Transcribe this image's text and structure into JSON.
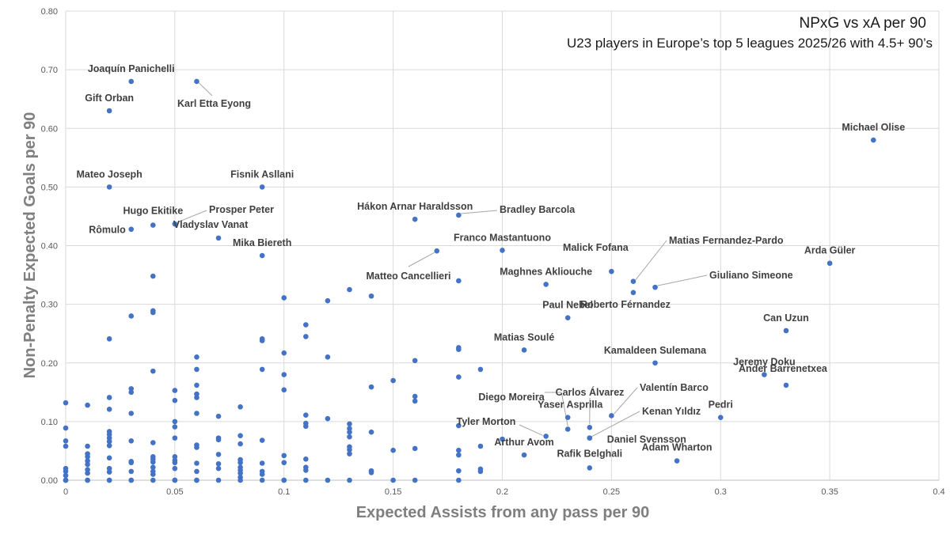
{
  "chart_data": {
    "type": "scatter",
    "title": "NPxG vs xA per 90",
    "subtitle": "U23 players in Europe’s top 5 leagues 2025/26 with 4.5+ 90’s",
    "xlabel": "Expected Assists from any pass per 90",
    "ylabel": "Non-Penalty Expected Goals per 90",
    "xlim": [
      0,
      0.4
    ],
    "ylim": [
      0,
      0.8
    ],
    "x_ticks": [
      "0",
      "0.05",
      "0.1",
      "0.15",
      "0.2",
      "0.25",
      "0.3",
      "0.35",
      "0.4"
    ],
    "y_ticks": [
      "0.00",
      "0.10",
      "0.20",
      "0.30",
      "0.40",
      "0.50",
      "0.60",
      "0.70",
      "0.80"
    ],
    "grid": true,
    "marker_color": "#4472c4",
    "labeled_points": [
      {
        "name": "Joaquín Panichelli",
        "x": 0.03,
        "y": 0.68
      },
      {
        "name": "Karl Etta Eyong",
        "x": 0.06,
        "y": 0.68
      },
      {
        "name": "Gift Orban",
        "x": 0.02,
        "y": 0.63
      },
      {
        "name": "Michael Olise",
        "x": 0.37,
        "y": 0.58
      },
      {
        "name": "Mateo Joseph",
        "x": 0.02,
        "y": 0.5
      },
      {
        "name": "Fisnik Asllani",
        "x": 0.09,
        "y": 0.5
      },
      {
        "name": "Hákon Arnar Haraldsson",
        "x": 0.16,
        "y": 0.445
      },
      {
        "name": "Bradley Barcola",
        "x": 0.18,
        "y": 0.452
      },
      {
        "name": "Prosper Peter",
        "x": 0.05,
        "y": 0.437
      },
      {
        "name": "Hugo Ekitike",
        "x": 0.04,
        "y": 0.435
      },
      {
        "name": "Rômulo",
        "x": 0.03,
        "y": 0.428
      },
      {
        "name": "Vladyslav Vanat",
        "x": 0.07,
        "y": 0.413
      },
      {
        "name": "Mika Biereth",
        "x": 0.09,
        "y": 0.383
      },
      {
        "name": "Franco Mastantuono",
        "x": 0.2,
        "y": 0.392
      },
      {
        "name": "Matteo Cancellieri",
        "x": 0.17,
        "y": 0.391
      },
      {
        "name": "Matias Fernandez-Pardo",
        "x": 0.26,
        "y": 0.339
      },
      {
        "name": "Malick Fofana",
        "x": 0.25,
        "y": 0.356
      },
      {
        "name": "Arda Güler",
        "x": 0.35,
        "y": 0.37
      },
      {
        "name": "Maghnes Akliouche",
        "x": 0.22,
        "y": 0.334
      },
      {
        "name": "Giuliano Simeone",
        "x": 0.27,
        "y": 0.329
      },
      {
        "name": "Roberto Férnandez",
        "x": 0.26,
        "y": 0.32
      },
      {
        "name": "Paul Nebel",
        "x": 0.23,
        "y": 0.277
      },
      {
        "name": "Can Uzun",
        "x": 0.33,
        "y": 0.255
      },
      {
        "name": "Matias Soulé",
        "x": 0.21,
        "y": 0.222
      },
      {
        "name": "Kamaldeen Sulemana",
        "x": 0.27,
        "y": 0.2
      },
      {
        "name": "Jeremy Doku",
        "x": 0.32,
        "y": 0.18
      },
      {
        "name": "Ander Barrenetxea",
        "x": 0.33,
        "y": 0.162
      },
      {
        "name": "Diego Moreira",
        "x": 0.23,
        "y": 0.087
      },
      {
        "name": "Carlos Álvarez",
        "x": 0.24,
        "y": 0.09
      },
      {
        "name": "Valentín Barco",
        "x": 0.25,
        "y": 0.11
      },
      {
        "name": "Yaser Asprilla",
        "x": 0.23,
        "y": 0.107
      },
      {
        "name": "Kenan Yıldız",
        "x": 0.24,
        "y": 0.072
      },
      {
        "name": "Pedri",
        "x": 0.3,
        "y": 0.107
      },
      {
        "name": "Tyler Morton",
        "x": 0.22,
        "y": 0.075
      },
      {
        "name": "Daniel Svensson",
        "x": 0.24,
        "y": 0.072
      },
      {
        "name": "Arthur Avom",
        "x": 0.21,
        "y": 0.043
      },
      {
        "name": "Adam Wharton",
        "x": 0.28,
        "y": 0.033
      },
      {
        "name": "Rafik Belghali",
        "x": 0.24,
        "y": 0.021
      }
    ],
    "unlabeled_points": [
      [
        0,
        0.132
      ],
      [
        0,
        0.089
      ],
      [
        0,
        0.067
      ],
      [
        0,
        0.058
      ],
      [
        0,
        0.02
      ],
      [
        0,
        0.015
      ],
      [
        0,
        0.008
      ],
      [
        0,
        0
      ],
      [
        0,
        0
      ],
      [
        0,
        0
      ],
      [
        0.01,
        0.128
      ],
      [
        0.01,
        0.058
      ],
      [
        0.01,
        0.045
      ],
      [
        0.01,
        0.04
      ],
      [
        0.01,
        0.033
      ],
      [
        0.01,
        0.027
      ],
      [
        0.01,
        0.018
      ],
      [
        0.01,
        0.012
      ],
      [
        0.01,
        0
      ],
      [
        0.01,
        0
      ],
      [
        0.02,
        0.241
      ],
      [
        0.02,
        0.141
      ],
      [
        0.02,
        0.121
      ],
      [
        0.02,
        0.083
      ],
      [
        0.02,
        0.078
      ],
      [
        0.02,
        0.072
      ],
      [
        0.02,
        0.066
      ],
      [
        0.02,
        0.059
      ],
      [
        0.02,
        0.038
      ],
      [
        0.02,
        0.02
      ],
      [
        0.02,
        0.014
      ],
      [
        0.02,
        0
      ],
      [
        0.02,
        0
      ],
      [
        0.03,
        0.28
      ],
      [
        0.03,
        0.156
      ],
      [
        0.03,
        0.15
      ],
      [
        0.03,
        0.114
      ],
      [
        0.03,
        0.067
      ],
      [
        0.03,
        0.032
      ],
      [
        0.03,
        0.03
      ],
      [
        0.03,
        0.015
      ],
      [
        0.03,
        0
      ],
      [
        0.03,
        0
      ],
      [
        0.04,
        0.348
      ],
      [
        0.04,
        0.289
      ],
      [
        0.04,
        0.286
      ],
      [
        0.04,
        0.186
      ],
      [
        0.04,
        0.064
      ],
      [
        0.04,
        0.04
      ],
      [
        0.04,
        0.036
      ],
      [
        0.04,
        0.031
      ],
      [
        0.04,
        0.022
      ],
      [
        0.04,
        0.015
      ],
      [
        0.04,
        0.01
      ],
      [
        0.04,
        0
      ],
      [
        0.05,
        0.153
      ],
      [
        0.05,
        0.136
      ],
      [
        0.05,
        0.1
      ],
      [
        0.05,
        0.091
      ],
      [
        0.05,
        0.072
      ],
      [
        0.05,
        0.04
      ],
      [
        0.05,
        0.034
      ],
      [
        0.05,
        0.03
      ],
      [
        0.05,
        0.02
      ],
      [
        0.05,
        0
      ],
      [
        0.05,
        0
      ],
      [
        0.06,
        0.21
      ],
      [
        0.06,
        0.189
      ],
      [
        0.06,
        0.162
      ],
      [
        0.06,
        0.147
      ],
      [
        0.06,
        0.141
      ],
      [
        0.06,
        0.114
      ],
      [
        0.06,
        0.06
      ],
      [
        0.06,
        0.056
      ],
      [
        0.06,
        0.029
      ],
      [
        0.06,
        0.015
      ],
      [
        0.06,
        0
      ],
      [
        0.06,
        0
      ],
      [
        0.07,
        0.109
      ],
      [
        0.07,
        0.072
      ],
      [
        0.07,
        0.069
      ],
      [
        0.07,
        0.044
      ],
      [
        0.07,
        0.028
      ],
      [
        0.07,
        0.02
      ],
      [
        0.07,
        0
      ],
      [
        0.08,
        0.125
      ],
      [
        0.08,
        0.076
      ],
      [
        0.08,
        0.062
      ],
      [
        0.08,
        0.035
      ],
      [
        0.08,
        0.03
      ],
      [
        0.08,
        0.022
      ],
      [
        0.08,
        0.017
      ],
      [
        0.08,
        0.012
      ],
      [
        0.08,
        0.005
      ],
      [
        0.08,
        0
      ],
      [
        0.09,
        0.241
      ],
      [
        0.09,
        0.238
      ],
      [
        0.09,
        0.189
      ],
      [
        0.09,
        0.068
      ],
      [
        0.09,
        0.029
      ],
      [
        0.09,
        0.015
      ],
      [
        0.09,
        0.01
      ],
      [
        0.09,
        0
      ],
      [
        0.1,
        0.311
      ],
      [
        0.1,
        0.217
      ],
      [
        0.1,
        0.18
      ],
      [
        0.1,
        0.154
      ],
      [
        0.1,
        0.042
      ],
      [
        0.1,
        0.03
      ],
      [
        0.1,
        0
      ],
      [
        0.1,
        0
      ],
      [
        0.11,
        0.265
      ],
      [
        0.11,
        0.245
      ],
      [
        0.11,
        0.111
      ],
      [
        0.11,
        0.097
      ],
      [
        0.11,
        0.092
      ],
      [
        0.11,
        0.036
      ],
      [
        0.11,
        0.022
      ],
      [
        0.11,
        0.017
      ],
      [
        0.11,
        0
      ],
      [
        0.12,
        0.306
      ],
      [
        0.12,
        0.21
      ],
      [
        0.12,
        0.105
      ],
      [
        0.12,
        0
      ],
      [
        0.13,
        0.325
      ],
      [
        0.13,
        0.096
      ],
      [
        0.13,
        0.088
      ],
      [
        0.13,
        0.082
      ],
      [
        0.13,
        0.074
      ],
      [
        0.13,
        0.057
      ],
      [
        0.13,
        0.052
      ],
      [
        0.13,
        0.045
      ],
      [
        0.13,
        0
      ],
      [
        0.14,
        0.314
      ],
      [
        0.14,
        0.159
      ],
      [
        0.14,
        0.082
      ],
      [
        0.14,
        0.016
      ],
      [
        0.14,
        0.013
      ],
      [
        0.15,
        0.17
      ],
      [
        0.15,
        0.051
      ],
      [
        0.15,
        0
      ],
      [
        0.16,
        0.204
      ],
      [
        0.16,
        0.143
      ],
      [
        0.16,
        0.135
      ],
      [
        0.16,
        0.054
      ],
      [
        0.16,
        0
      ],
      [
        0.18,
        0.34
      ],
      [
        0.18,
        0.226
      ],
      [
        0.18,
        0.223
      ],
      [
        0.18,
        0.176
      ],
      [
        0.18,
        0.093
      ],
      [
        0.18,
        0.051
      ],
      [
        0.18,
        0.043
      ],
      [
        0.18,
        0.016
      ],
      [
        0.18,
        0
      ],
      [
        0.19,
        0.189
      ],
      [
        0.19,
        0.058
      ],
      [
        0.19,
        0.019
      ],
      [
        0.19,
        0.015
      ],
      [
        0.2,
        0.07
      ]
    ]
  }
}
